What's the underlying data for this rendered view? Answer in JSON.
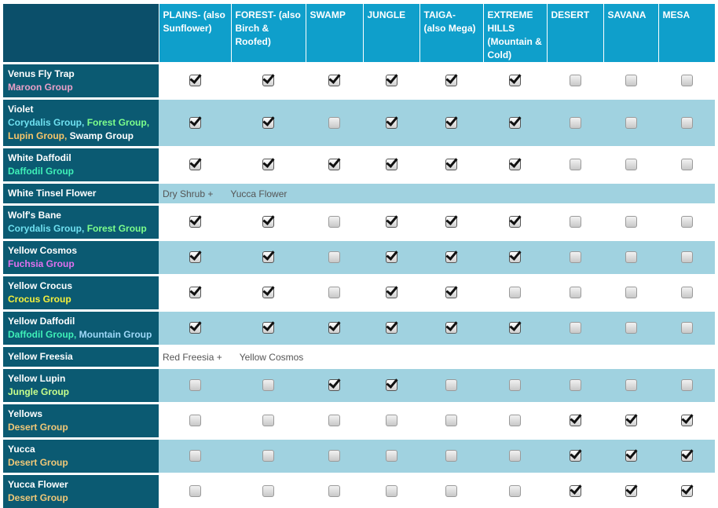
{
  "columns": [
    "PLAINS- (also Sunflower)",
    "FOREST- (also Birch & Roofed)",
    "SWAMP",
    "JUNGLE",
    "TAIGA- (also Mega)",
    "EXTREME HILLS (Mountain & Cold)",
    "DESERT",
    "SAVANA",
    "MESA"
  ],
  "colors": {
    "maroon": "#e8a0c8",
    "cyan": "#6fe0f0",
    "lightgreen": "#7dff8c",
    "orange": "#f7c66a",
    "white": "#ffffff",
    "teal": "#3ff0b8",
    "magenta": "#e070f0",
    "yellow": "#f5f03c",
    "sky": "#9fd8f8",
    "lime": "#c8ff8c",
    "gold": "#f0c878"
  },
  "rows": [
    {
      "name": "Venus Fly Trap",
      "groups": [
        {
          "text": "Maroon Group",
          "color": "maroon"
        }
      ],
      "checks": [
        1,
        1,
        1,
        1,
        1,
        1,
        0,
        0,
        0
      ]
    },
    {
      "name": "Violet",
      "groups": [
        {
          "text": "Corydalis Group, ",
          "color": "cyan"
        },
        {
          "text": "Forest Group, ",
          "color": "lightgreen"
        },
        {
          "text": "Lupin Group, ",
          "color": "orange"
        },
        {
          "text": "Swamp Group",
          "color": "white"
        }
      ],
      "checks": [
        1,
        1,
        0,
        1,
        1,
        1,
        0,
        0,
        0
      ]
    },
    {
      "name": "White Daffodil",
      "groups": [
        {
          "text": "Daffodil Group",
          "color": "teal"
        }
      ],
      "checks": [
        1,
        1,
        1,
        1,
        1,
        1,
        0,
        0,
        0
      ]
    },
    {
      "name": "White Tinsel Flower",
      "groups": [],
      "note": [
        "Dry Shrub +",
        "Yucca Flower"
      ]
    },
    {
      "name": "Wolf's Bane",
      "groups": [
        {
          "text": "Corydalis Group, ",
          "color": "cyan"
        },
        {
          "text": "Forest Group",
          "color": "lightgreen"
        }
      ],
      "checks": [
        1,
        1,
        0,
        1,
        1,
        1,
        0,
        0,
        0
      ]
    },
    {
      "name": "Yellow Cosmos",
      "groups": [
        {
          "text": "Fuchsia Group",
          "color": "magenta"
        }
      ],
      "checks": [
        1,
        1,
        0,
        1,
        1,
        1,
        0,
        0,
        0
      ]
    },
    {
      "name": "Yellow Crocus",
      "groups": [
        {
          "text": "Crocus Group",
          "color": "yellow"
        }
      ],
      "checks": [
        1,
        1,
        0,
        1,
        1,
        0,
        0,
        0,
        0
      ]
    },
    {
      "name": "Yellow Daffodil",
      "groups": [
        {
          "text": "Daffodil Group, ",
          "color": "teal"
        },
        {
          "text": "Mountain Group",
          "color": "sky"
        }
      ],
      "checks": [
        1,
        1,
        1,
        1,
        1,
        1,
        0,
        0,
        0
      ]
    },
    {
      "name": "Yellow Freesia",
      "groups": [],
      "note": [
        "Red Freesia +",
        "Yellow Cosmos"
      ]
    },
    {
      "name": "Yellow Lupin",
      "groups": [
        {
          "text": "Jungle Group",
          "color": "lime"
        }
      ],
      "checks": [
        0,
        0,
        1,
        1,
        0,
        0,
        0,
        0,
        0
      ]
    },
    {
      "name": "Yellows",
      "groups": [
        {
          "text": "Desert Group",
          "color": "gold"
        }
      ],
      "checks": [
        0,
        0,
        0,
        0,
        0,
        0,
        1,
        1,
        1
      ]
    },
    {
      "name": "Yucca",
      "groups": [
        {
          "text": "Desert Group",
          "color": "gold"
        }
      ],
      "checks": [
        0,
        0,
        0,
        0,
        0,
        0,
        1,
        1,
        1
      ]
    },
    {
      "name": "Yucca Flower",
      "groups": [
        {
          "text": "Desert Group",
          "color": "gold"
        }
      ],
      "checks": [
        0,
        0,
        0,
        0,
        0,
        0,
        1,
        1,
        1
      ]
    }
  ]
}
